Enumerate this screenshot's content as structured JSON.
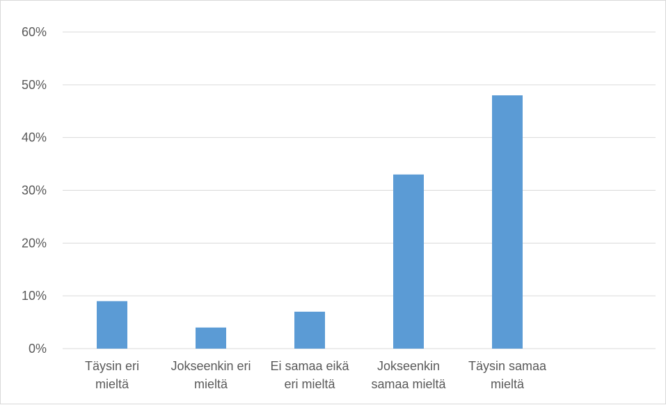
{
  "chart_data": {
    "type": "bar",
    "title": "",
    "xlabel": "",
    "ylabel": "",
    "ylim": [
      0,
      0.6
    ],
    "yticks": [
      0,
      0.1,
      0.2,
      0.3,
      0.4,
      0.5,
      0.6
    ],
    "ytick_labels": [
      "0%",
      "10%",
      "20%",
      "30%",
      "40%",
      "50%",
      "60%"
    ],
    "categories": [
      [
        "Täysin eri",
        "mieltä"
      ],
      [
        "Jokseenkin eri",
        "mieltä"
      ],
      [
        "Ei samaa eikä",
        "eri mieltä"
      ],
      [
        "Jokseenkin",
        "samaa mieltä"
      ],
      [
        "Täysin samaa",
        "mieltä"
      ],
      [
        ""
      ]
    ],
    "values": [
      0.09,
      0.04,
      0.07,
      0.33,
      0.48,
      null
    ],
    "bar_color": "#5b9bd5",
    "gridline_color": "#d9d9d9",
    "grid": true,
    "legend": false
  }
}
